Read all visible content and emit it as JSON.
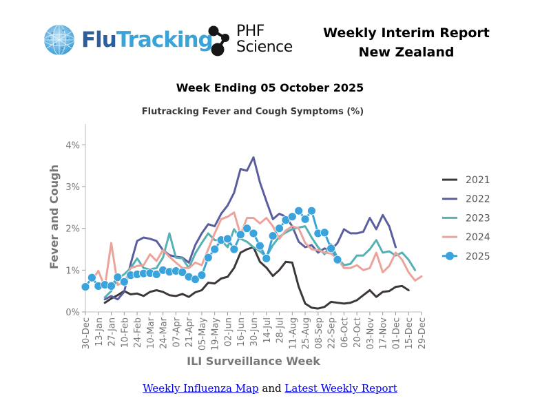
{
  "header": {
    "logo_left_part1": "Flu",
    "logo_left_part2": "Tracking",
    "logo_right_line1": "PHF",
    "logo_right_line2": "Science",
    "report_title_line1": "Weekly Interim Report",
    "report_title_line2": "New Zealand"
  },
  "week_title": "Week Ending 05 October 2025",
  "footer": {
    "link1": "Weekly Influenza Map",
    "connector": "and",
    "link2": "Latest Weekly Report"
  },
  "chart_data": {
    "type": "line",
    "title": "Flutracking Fever and Cough Symptoms (%)",
    "xlabel": "ILI Surveillance Week",
    "ylabel": "Fever and Cough",
    "ylim": [
      0,
      4.5
    ],
    "yticks": [
      0,
      1,
      2,
      3,
      4
    ],
    "ytick_labels": [
      "0%",
      "1%",
      "2%",
      "3%",
      "4%"
    ],
    "grid": false,
    "legend_position": "right",
    "x_tick_labels": [
      "30-Dec",
      "13-Jan",
      "27-Jan",
      "10-Feb",
      "24-Feb",
      "10-Mar",
      "24-Mar",
      "07-Apr",
      "21-Apr",
      "05-May",
      "19-May",
      "02-Jun",
      "16-Jun",
      "30-Jun",
      "14-Jul",
      "28-Jul",
      "11-Aug",
      "25-Aug",
      "08-Sep",
      "22-Sep",
      "06-Oct",
      "20-Oct",
      "03-Nov",
      "17-Nov",
      "01-Dec",
      "15-Dec",
      "29-Dec"
    ],
    "series": [
      {
        "name": "2021",
        "color": "#3d3738",
        "markers": false,
        "start_week": 3,
        "values": [
          0.22,
          0.32,
          0.4,
          0.5,
          0.42,
          0.44,
          0.38,
          0.48,
          0.52,
          0.48,
          0.4,
          0.38,
          0.43,
          0.36,
          0.47,
          0.52,
          0.7,
          0.68,
          0.8,
          0.84,
          1.05,
          1.42,
          1.5,
          1.55,
          1.2,
          1.06,
          0.86,
          1.0,
          1.2,
          1.18,
          0.6,
          0.2,
          0.1,
          0.08,
          0.12,
          0.24,
          0.22,
          0.2,
          0.22,
          0.28,
          0.4,
          0.52,
          0.36,
          0.48,
          0.5,
          0.6,
          0.62,
          0.52
        ]
      },
      {
        "name": "2022",
        "color": "#5a5e9e",
        "markers": false,
        "start_week": 3,
        "values": [
          0.3,
          0.38,
          0.3,
          0.48,
          1.15,
          1.7,
          1.78,
          1.75,
          1.7,
          1.48,
          1.36,
          1.32,
          1.3,
          1.18,
          1.6,
          1.88,
          2.1,
          2.05,
          2.35,
          2.55,
          2.85,
          3.42,
          3.38,
          3.7,
          3.1,
          2.65,
          2.22,
          2.35,
          2.28,
          2.05,
          1.68,
          1.55,
          1.6,
          1.42,
          1.52,
          1.48,
          1.65,
          1.98,
          1.88,
          1.88,
          1.92,
          2.25,
          1.98,
          2.32,
          2.05,
          1.55
        ]
      },
      {
        "name": "2023",
        "color": "#56b0b4",
        "markers": false,
        "start_week": 3,
        "values": [
          0.35,
          0.5,
          0.8,
          0.9,
          1.05,
          1.28,
          1.05,
          1.02,
          1.05,
          1.3,
          1.88,
          1.3,
          1.28,
          1.05,
          1.4,
          1.65,
          1.88,
          1.72,
          1.72,
          1.55,
          1.98,
          1.75,
          1.68,
          1.55,
          1.45,
          1.32,
          1.6,
          1.8,
          1.9,
          1.98,
          2.02,
          2.05,
          1.78,
          1.55,
          1.38,
          1.62,
          1.3,
          1.12,
          1.15,
          1.35,
          1.35,
          1.5,
          1.72,
          1.42,
          1.45,
          1.35,
          1.42,
          1.25,
          1.0
        ]
      },
      {
        "name": "2024",
        "color": "#eba39b",
        "markers": false,
        "start_week": 1,
        "values": [
          0.75,
          0.98,
          0.6,
          1.65,
          0.65,
          0.7,
          1.05,
          1.1,
          1.12,
          1.38,
          1.22,
          1.48,
          1.32,
          1.18,
          1.05,
          1.05,
          1.18,
          1.12,
          1.5,
          1.88,
          2.22,
          2.28,
          2.38,
          1.85,
          2.25,
          2.25,
          2.12,
          2.25,
          2.05,
          1.75,
          1.95,
          2.05,
          2.0,
          1.65,
          1.5,
          1.48,
          1.42,
          1.4,
          1.28,
          1.05,
          1.05,
          1.12,
          1.0,
          1.05,
          1.42,
          0.95,
          1.1,
          1.42,
          1.25,
          0.95,
          0.75,
          0.85
        ]
      },
      {
        "name": "2025",
        "color": "#3ba3dc",
        "markers": true,
        "start_week": 0,
        "values": [
          0.6,
          0.82,
          0.62,
          0.65,
          0.62,
          0.83,
          0.72,
          0.88,
          0.9,
          0.92,
          0.93,
          0.9,
          1.0,
          0.96,
          0.98,
          0.95,
          0.84,
          0.78,
          0.88,
          1.3,
          1.5,
          1.72,
          1.75,
          1.5,
          1.85,
          2.0,
          1.88,
          1.58,
          1.28,
          1.82,
          2.0,
          2.2,
          2.28,
          2.42,
          2.22,
          2.42,
          1.88,
          1.9,
          1.52,
          1.25
        ]
      }
    ]
  }
}
